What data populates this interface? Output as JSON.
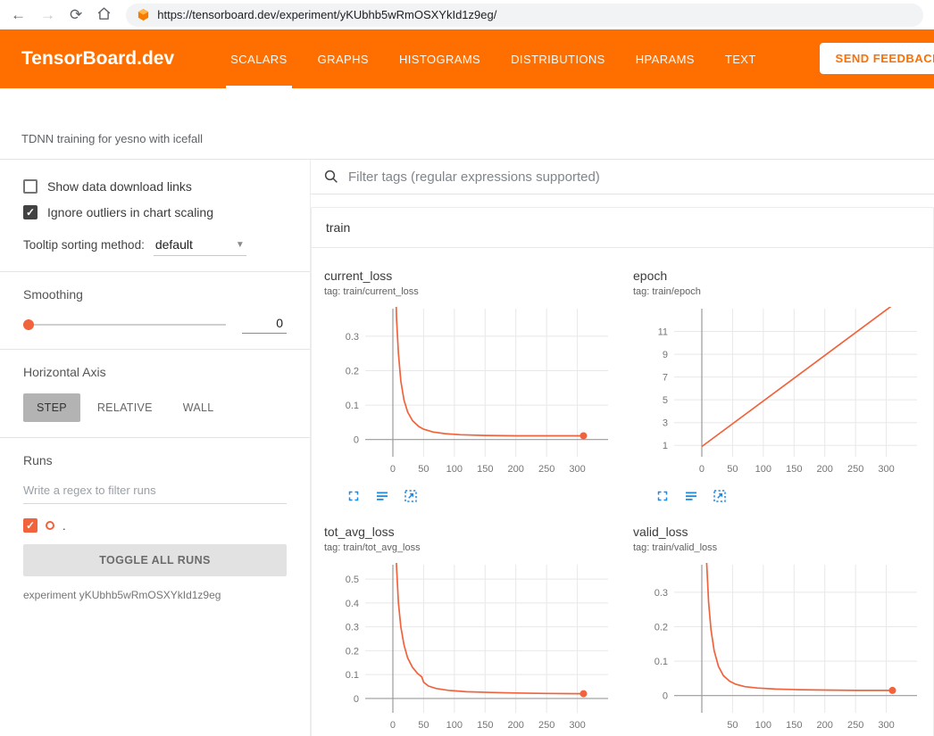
{
  "browser": {
    "url": "https://tensorboard.dev/experiment/yKUbhb5wRmOSXYkId1z9eg/",
    "icons": {
      "back": "←",
      "forward": "→",
      "reload": "⟳"
    }
  },
  "header": {
    "brand": "TensorBoard.dev",
    "tabs": [
      {
        "label": "SCALARS",
        "active": true
      },
      {
        "label": "GRAPHS",
        "active": false
      },
      {
        "label": "HISTOGRAMS",
        "active": false
      },
      {
        "label": "DISTRIBUTIONS",
        "active": false
      },
      {
        "label": "HPARAMS",
        "active": false
      },
      {
        "label": "TEXT",
        "active": false
      }
    ],
    "feedback_label": "SEND FEEDBACK"
  },
  "experiment_title": "TDNN training for yesno with icefall",
  "sidebar": {
    "show_download": {
      "label": "Show data download links",
      "checked": false
    },
    "ignore_outliers": {
      "label": "Ignore outliers in chart scaling",
      "checked": true
    },
    "tooltip_sorting": {
      "label": "Tooltip sorting method:",
      "value": "default"
    },
    "smoothing": {
      "label": "Smoothing",
      "value": "0"
    },
    "horizontal_axis": {
      "label": "Horizontal Axis",
      "options": [
        "STEP",
        "RELATIVE",
        "WALL"
      ],
      "selected": "STEP"
    },
    "runs": {
      "label": "Runs",
      "filter_placeholder": "Write a regex to filter runs",
      "items": [
        {
          "name": ".",
          "checked": true,
          "color": "#f0633c"
        }
      ],
      "toggle_button": "TOGGLE ALL RUNS",
      "experiment_caption": "experiment yKUbhb5wRmOSXYkId1z9eg"
    }
  },
  "main": {
    "filter_placeholder": "Filter tags (regular expressions supported)",
    "card_title": "train"
  },
  "colors": {
    "header_orange": "#ff6f00",
    "accent_run": "#f0633c",
    "chart_line": "#f0633c",
    "icon_blue": "#1e88e5"
  },
  "chart_data": [
    {
      "type": "line",
      "title": "current_loss",
      "tag_label": "tag: train/current_loss",
      "xticks": [
        0,
        50,
        100,
        150,
        200,
        250,
        300
      ],
      "yticks": [
        0,
        0.1,
        0.2,
        0.3
      ],
      "xlim": [
        -45,
        350
      ],
      "ylim": [
        -0.05,
        0.38
      ],
      "series": [
        {
          "name": ".",
          "color": "#f0633c",
          "end_dot": true,
          "points": [
            [
              3,
              0.55
            ],
            [
              6,
              0.35
            ],
            [
              9,
              0.25
            ],
            [
              13,
              0.17
            ],
            [
              18,
              0.115
            ],
            [
              24,
              0.08
            ],
            [
              32,
              0.055
            ],
            [
              42,
              0.038
            ],
            [
              50,
              0.03
            ],
            [
              65,
              0.022
            ],
            [
              85,
              0.017
            ],
            [
              110,
              0.014
            ],
            [
              150,
              0.012
            ],
            [
              200,
              0.011
            ],
            [
              250,
              0.011
            ],
            [
              310,
              0.011
            ]
          ]
        }
      ]
    },
    {
      "type": "line",
      "title": "epoch",
      "tag_label": "tag: train/epoch",
      "xticks": [
        0,
        50,
        100,
        150,
        200,
        250,
        300
      ],
      "yticks": [
        1,
        3,
        5,
        7,
        9,
        11
      ],
      "xlim": [
        -45,
        350
      ],
      "ylim": [
        0,
        13
      ],
      "series": [
        {
          "name": ".",
          "color": "#f0633c",
          "end_dot": false,
          "points": [
            [
              0,
              0.9
            ],
            [
              310,
              13.3
            ]
          ]
        }
      ]
    },
    {
      "type": "line",
      "title": "tot_avg_loss",
      "tag_label": "tag: train/tot_avg_loss",
      "xticks": [
        0,
        50,
        100,
        150,
        200,
        250,
        300
      ],
      "yticks": [
        0,
        0.1,
        0.2,
        0.3,
        0.4,
        0.5
      ],
      "xlim": [
        -45,
        350
      ],
      "ylim": [
        -0.06,
        0.56
      ],
      "series": [
        {
          "name": ".",
          "color": "#f0633c",
          "end_dot": true,
          "points": [
            [
              3,
              0.75
            ],
            [
              6,
              0.55
            ],
            [
              9,
              0.4
            ],
            [
              13,
              0.3
            ],
            [
              18,
              0.225
            ],
            [
              24,
              0.17
            ],
            [
              32,
              0.13
            ],
            [
              40,
              0.105
            ],
            [
              47,
              0.09
            ],
            [
              50,
              0.068
            ],
            [
              58,
              0.052
            ],
            [
              70,
              0.042
            ],
            [
              90,
              0.034
            ],
            [
              120,
              0.028
            ],
            [
              160,
              0.025
            ],
            [
              200,
              0.023
            ],
            [
              250,
              0.021
            ],
            [
              310,
              0.02
            ]
          ]
        }
      ]
    },
    {
      "type": "line",
      "title": "valid_loss",
      "tag_label": "tag: train/valid_loss",
      "xticks": [
        50,
        100,
        150,
        200,
        250,
        300
      ],
      "yticks": [
        0,
        0.1,
        0.2,
        0.3
      ],
      "xlim": [
        -45,
        350
      ],
      "ylim": [
        -0.05,
        0.38
      ],
      "series": [
        {
          "name": ".",
          "color": "#f0633c",
          "end_dot": true,
          "points": [
            [
              5,
              0.55
            ],
            [
              8,
              0.38
            ],
            [
              11,
              0.27
            ],
            [
              15,
              0.19
            ],
            [
              20,
              0.13
            ],
            [
              27,
              0.085
            ],
            [
              35,
              0.058
            ],
            [
              45,
              0.042
            ],
            [
              55,
              0.033
            ],
            [
              70,
              0.026
            ],
            [
              90,
              0.022
            ],
            [
              120,
              0.019
            ],
            [
              160,
              0.017
            ],
            [
              200,
              0.016
            ],
            [
              250,
              0.015
            ],
            [
              310,
              0.015
            ]
          ]
        }
      ]
    }
  ]
}
